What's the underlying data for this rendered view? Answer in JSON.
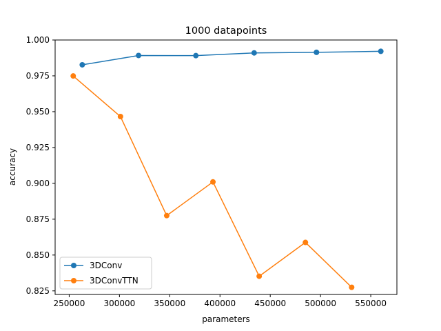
{
  "chart_data": {
    "type": "line",
    "title": "1000 datapoints",
    "xlabel": "parameters",
    "ylabel": "accuracy",
    "xlim": [
      236000,
      576000
    ],
    "ylim": [
      0.8225,
      1.0
    ],
    "xticks": [
      250000,
      300000,
      350000,
      400000,
      450000,
      500000,
      550000
    ],
    "yticks": [
      0.825,
      0.85,
      0.875,
      0.9,
      0.925,
      0.95,
      0.975,
      1.0
    ],
    "xtick_labels": [
      "250000",
      "300000",
      "350000",
      "400000",
      "450000",
      "500000",
      "550000"
    ],
    "ytick_labels": [
      "0.825",
      "0.850",
      "0.875",
      "0.900",
      "0.925",
      "0.950",
      "0.975",
      "1.000"
    ],
    "grid": false,
    "legend_position": "lower-left",
    "series": [
      {
        "name": "3DConv",
        "color": "#1f77b4",
        "marker": "circle",
        "x": [
          263000,
          319000,
          376000,
          434000,
          496000,
          560000
        ],
        "y": [
          0.9827,
          0.9892,
          0.9891,
          0.991,
          0.9914,
          0.9921
        ]
      },
      {
        "name": "3DConvTTN",
        "color": "#ff7f0e",
        "marker": "circle",
        "x": [
          254000,
          301000,
          347000,
          393000,
          439000,
          485000,
          531000
        ],
        "y": [
          0.9749,
          0.9466,
          0.8775,
          0.901,
          0.8352,
          0.8588,
          0.8275
        ]
      }
    ]
  }
}
